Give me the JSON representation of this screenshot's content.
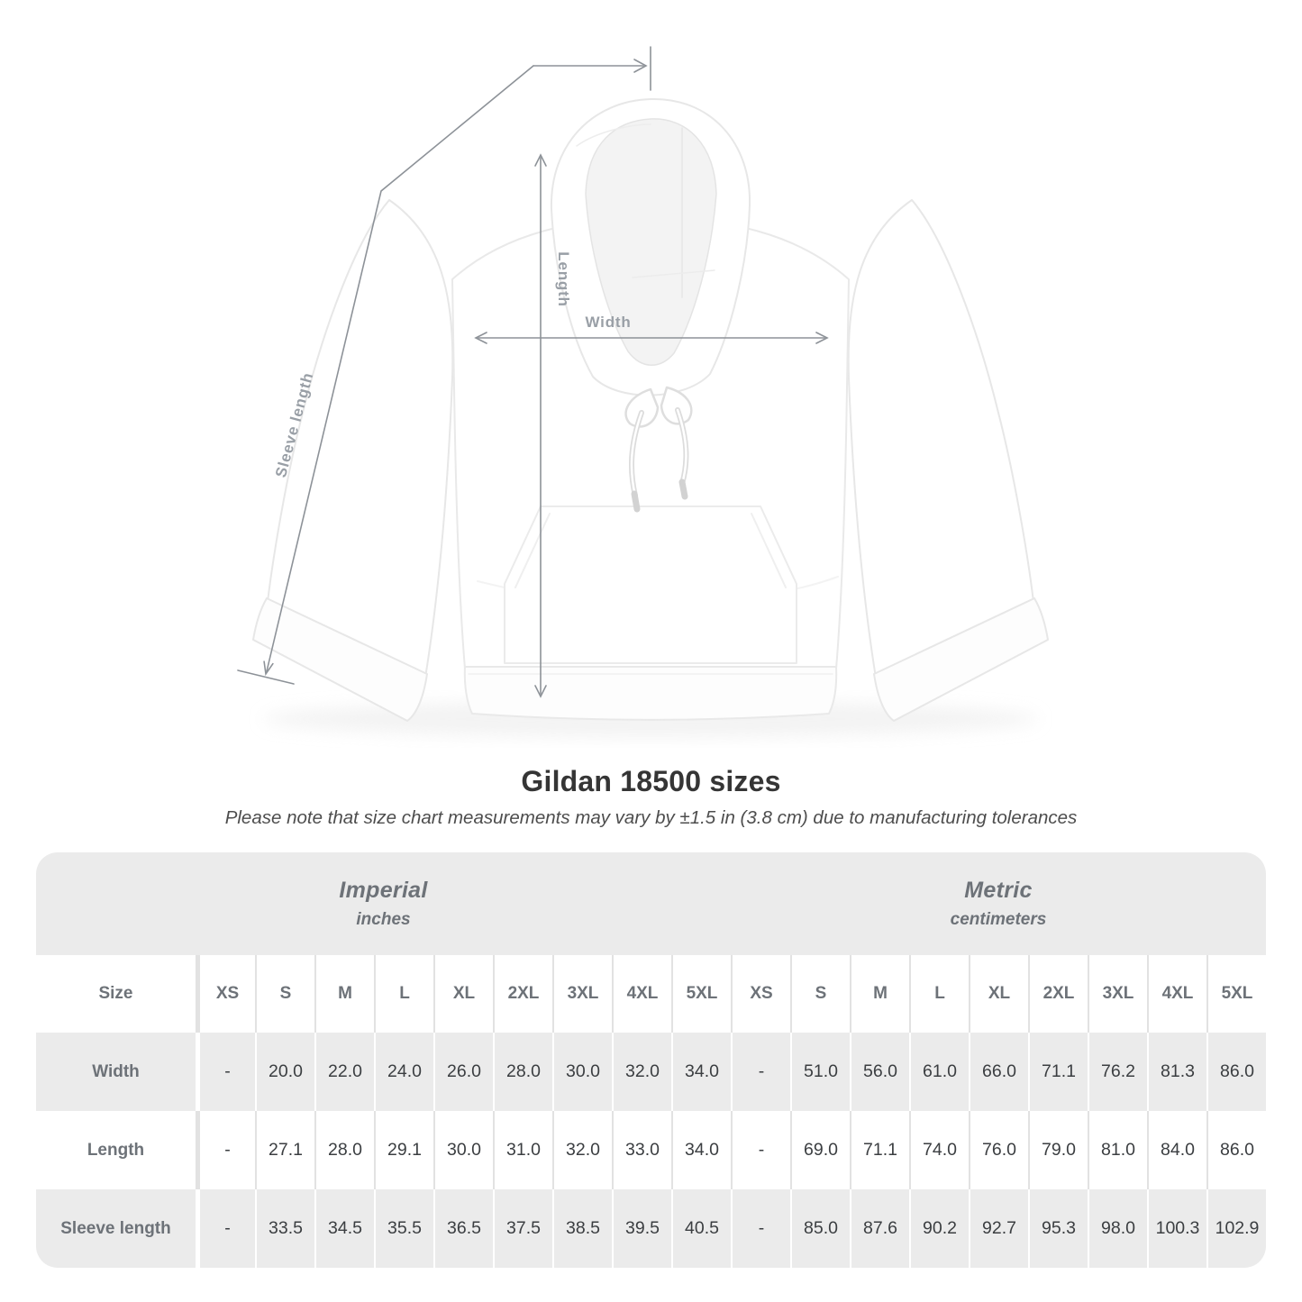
{
  "figure": {
    "width_label": "Width",
    "length_label": "Length",
    "sleeve_label": "Sleeve length",
    "line_color": "#8d9298",
    "label_color": "#999fa6"
  },
  "header": {
    "title": "Gildan 18500 sizes",
    "note": "Please note that size chart measurements may vary by ±1.5 in (3.8 cm) due to manufacturing tolerances"
  },
  "table": {
    "imperial_title": "Imperial",
    "imperial_unit": "inches",
    "metric_title": "Metric",
    "metric_unit": "centimeters",
    "size_label": "Size",
    "band_color": "#ebebeb",
    "sizes": [
      "XS",
      "S",
      "M",
      "L",
      "XL",
      "2XL",
      "3XL",
      "4XL",
      "5XL"
    ],
    "rows": [
      {
        "label": "Width",
        "striped": true,
        "imperial": [
          "-",
          "20.0",
          "22.0",
          "24.0",
          "26.0",
          "28.0",
          "30.0",
          "32.0",
          "34.0"
        ],
        "metric": [
          "-",
          "51.0",
          "56.0",
          "61.0",
          "66.0",
          "71.1",
          "76.2",
          "81.3",
          "86.0"
        ]
      },
      {
        "label": "Length",
        "striped": false,
        "imperial": [
          "-",
          "27.1",
          "28.0",
          "29.1",
          "30.0",
          "31.0",
          "32.0",
          "33.0",
          "34.0"
        ],
        "metric": [
          "-",
          "69.0",
          "71.1",
          "74.0",
          "76.0",
          "79.0",
          "81.0",
          "84.0",
          "86.0"
        ]
      },
      {
        "label": "Sleeve length",
        "striped": true,
        "imperial": [
          "-",
          "33.5",
          "34.5",
          "35.5",
          "36.5",
          "37.5",
          "38.5",
          "39.5",
          "40.5"
        ],
        "metric": [
          "-",
          "85.0",
          "87.6",
          "90.2",
          "92.7",
          "95.3",
          "98.0",
          "100.3",
          "102.9"
        ]
      }
    ]
  }
}
